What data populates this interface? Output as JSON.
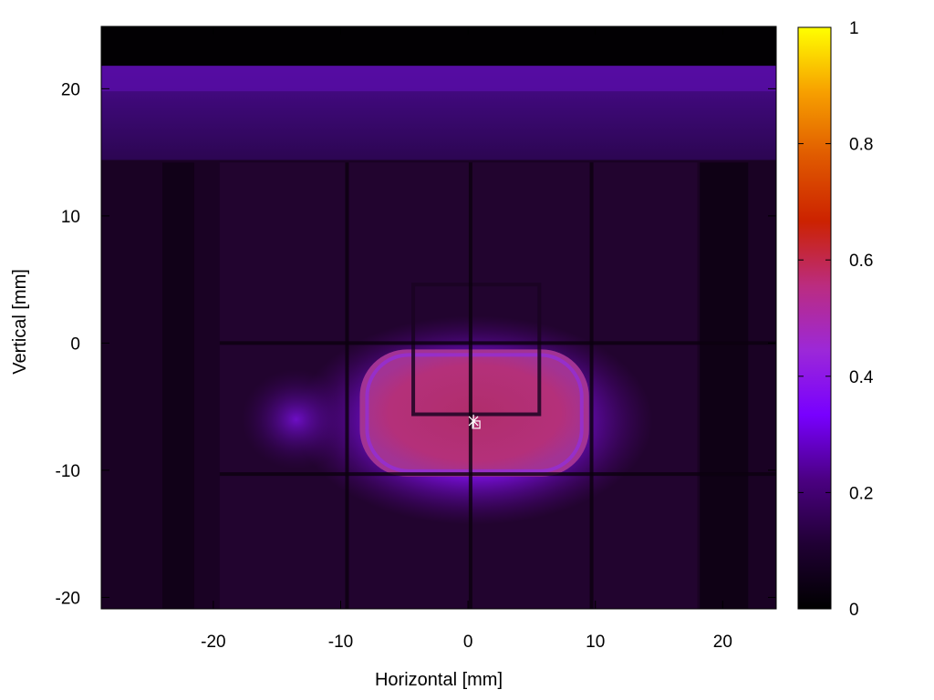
{
  "chart_data": {
    "type": "heatmap",
    "title": "",
    "xlabel": "Horizontal [mm]",
    "ylabel": "Vertical [mm]",
    "xlim": [
      -28.8,
      24.2
    ],
    "ylim": [
      -20.9,
      24.9
    ],
    "x_ticks": [
      -20,
      -10,
      0,
      10,
      20
    ],
    "y_ticks": [
      -20,
      -10,
      0,
      10,
      20
    ],
    "colorbar": {
      "range": [
        0,
        1
      ],
      "ticks": [
        0,
        0.2,
        0.4,
        0.6,
        0.8,
        1
      ],
      "tick_labels": [
        "0",
        "0.2",
        "0.4",
        "0.6",
        "0.8",
        "1"
      ],
      "palette": [
        "#000000",
        "#200034",
        "#4b0082",
        "#7800ff",
        "#9c28d8",
        "#bb2c80",
        "#cc2200",
        "#e05a00",
        "#f7a000",
        "#ffff00"
      ]
    },
    "background_level": 0.05,
    "top_band": {
      "y_range": [
        14.4,
        21.8
      ],
      "level": 0.16
    },
    "grid_lines_x": [
      -9.5,
      0.2,
      9.7
    ],
    "grid_lines_y": [
      0.0,
      -10.3
    ],
    "beam_spot": {
      "x_range": [
        -8.5,
        9.5
      ],
      "y_range": [
        -10.5,
        -0.5
      ],
      "core_level": 0.4,
      "halo_level": 0.25
    },
    "inner_frame": {
      "x_range": [
        -4.3,
        5.6
      ],
      "y_range": [
        -5.6,
        4.6
      ]
    },
    "center_marker": {
      "x": 0.5,
      "y": -6.2
    }
  }
}
